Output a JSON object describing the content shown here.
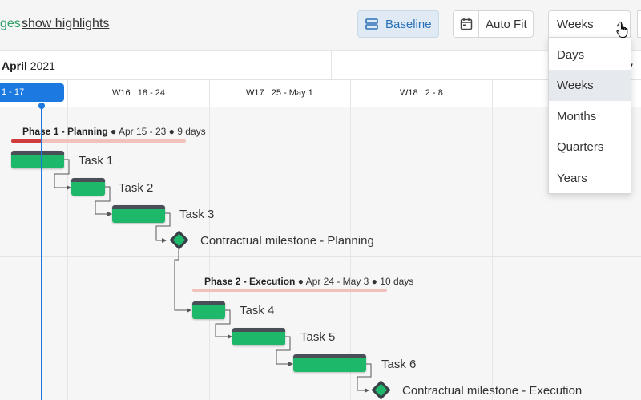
{
  "toolbar": {
    "prev_text": "ges",
    "show_highlights_label": "show highlights",
    "baseline_label": "Baseline",
    "baseline_icon": "layers-icon",
    "autofit_label": "Auto Fit",
    "autofit_icon": "calendar-icon",
    "zoom_select_value": "Weeks",
    "zoom_options": [
      "Days",
      "Weeks",
      "Months",
      "Quarters",
      "Years"
    ],
    "zoom_selected": "Weeks"
  },
  "timeline": {
    "month": "April",
    "year": "2021",
    "next_month_fragment": "y",
    "today_week_label": "1 - 17",
    "weeks": [
      {
        "week": "W16",
        "range": "18 - 24"
      },
      {
        "week": "W17",
        "range": "25 - May 1"
      },
      {
        "week": "W18",
        "range": "2 - 8"
      }
    ]
  },
  "phases": [
    {
      "name": "Phase 1 - Planning",
      "dates": "Apr 15 - 23",
      "duration": "9 days"
    },
    {
      "name": "Phase 2 - Execution",
      "dates": "Apr 24 - May 3",
      "duration": "10 days"
    }
  ],
  "tasks": [
    {
      "label": "Task 1"
    },
    {
      "label": "Task 2"
    },
    {
      "label": "Task 3"
    },
    {
      "label": "Contractual milestone - Planning"
    },
    {
      "label": "Task 4"
    },
    {
      "label": "Task 5"
    },
    {
      "label": "Task 6"
    },
    {
      "label": "Contractual milestone - Execution"
    }
  ],
  "colors": {
    "accent_blue": "#1b79e0",
    "task_green": "#1db86a",
    "bar_top": "#4a4f57",
    "phase_line": "#f0c2bb",
    "phase_progress": "#d23b3b",
    "highlight_green": "#2e9e6a"
  }
}
